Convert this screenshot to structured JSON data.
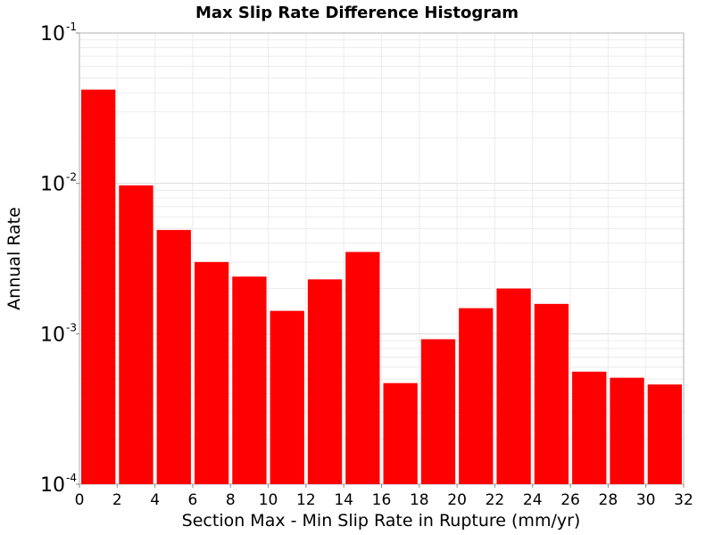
{
  "chart_data": {
    "type": "bar",
    "title": "Max Slip Rate Difference Histogram",
    "xlabel": "Section Max - Min Slip Rate in Rupture (mm/yr)",
    "ylabel": "Annual Rate",
    "x_ticks": [
      "0",
      "2",
      "4",
      "6",
      "8",
      "10",
      "12",
      "14",
      "16",
      "18",
      "20",
      "22",
      "24",
      "26",
      "28",
      "30",
      "32"
    ],
    "y_ticks": [
      {
        "base": "10",
        "exp": "-1",
        "value": 0.1
      },
      {
        "base": "10",
        "exp": "-2",
        "value": 0.01
      },
      {
        "base": "10",
        "exp": "-3",
        "value": 0.001
      },
      {
        "base": "10",
        "exp": "-4",
        "value": 0.0001
      }
    ],
    "xlim": [
      0,
      32
    ],
    "ylim": [
      0.0001,
      0.1
    ],
    "y_scale": "log",
    "bar_color": "#ff0000",
    "grid": true,
    "bin_width": 2,
    "bins": [
      {
        "x": 1,
        "value": 0.042
      },
      {
        "x": 3,
        "value": 0.0097
      },
      {
        "x": 5,
        "value": 0.0049
      },
      {
        "x": 7,
        "value": 0.003
      },
      {
        "x": 9,
        "value": 0.0024
      },
      {
        "x": 11,
        "value": 0.00142
      },
      {
        "x": 13,
        "value": 0.0023
      },
      {
        "x": 15,
        "value": 0.0035
      },
      {
        "x": 17,
        "value": 0.00047
      },
      {
        "x": 19,
        "value": 0.00092
      },
      {
        "x": 21,
        "value": 0.00148
      },
      {
        "x": 23,
        "value": 0.002
      },
      {
        "x": 25,
        "value": 0.00158
      },
      {
        "x": 27,
        "value": 0.00056
      },
      {
        "x": 29,
        "value": 0.00051
      },
      {
        "x": 31,
        "value": 0.00046
      }
    ]
  }
}
